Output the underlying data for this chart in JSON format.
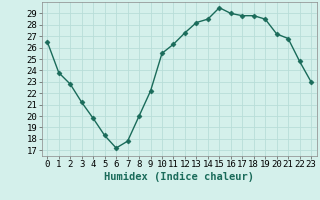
{
  "x": [
    0,
    1,
    2,
    3,
    4,
    5,
    6,
    7,
    8,
    9,
    10,
    11,
    12,
    13,
    14,
    15,
    16,
    17,
    18,
    19,
    20,
    21,
    22,
    23
  ],
  "y": [
    26.5,
    23.8,
    22.8,
    21.2,
    19.8,
    18.3,
    17.2,
    17.8,
    20.0,
    22.2,
    25.5,
    26.3,
    27.3,
    28.2,
    28.5,
    29.5,
    29.0,
    28.8,
    28.8,
    28.5,
    27.2,
    26.8,
    24.8,
    23.0
  ],
  "line_color": "#1a6b5a",
  "marker": "D",
  "marker_size": 2.5,
  "bg_color": "#d4f0eb",
  "grid_color": "#b8ddd8",
  "xlabel": "Humidex (Indice chaleur)",
  "xlim": [
    -0.5,
    23.5
  ],
  "ymin": 16.5,
  "ymax": 30.0,
  "yticks": [
    17,
    18,
    19,
    20,
    21,
    22,
    23,
    24,
    25,
    26,
    27,
    28,
    29
  ],
  "xticks": [
    0,
    1,
    2,
    3,
    4,
    5,
    6,
    7,
    8,
    9,
    10,
    11,
    12,
    13,
    14,
    15,
    16,
    17,
    18,
    19,
    20,
    21,
    22,
    23
  ],
  "tick_label_fontsize": 6.5,
  "xlabel_fontsize": 7.5,
  "linewidth": 1.0
}
